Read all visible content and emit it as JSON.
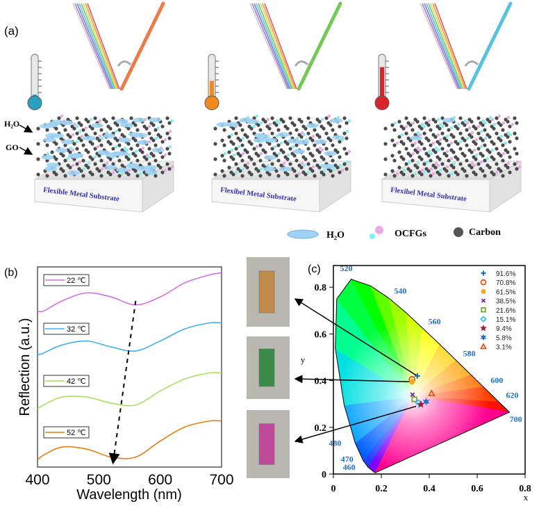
{
  "panel_a": {
    "label": "(a)",
    "h2o_label": "H₂O",
    "go_label": "GO",
    "stacks": [
      {
        "substrate_label": "Flexible Metal Substrate",
        "thermometer_color": "#2a9fc0",
        "thermometer_level": 0.15,
        "reflected_color": "#e8642a",
        "water_level": 1.0
      },
      {
        "substrate_label": "Flexibel Metal Substrate",
        "thermometer_color": "#f08a1e",
        "thermometer_level": 0.45,
        "reflected_color": "#5bbf3a",
        "water_level": 0.45
      },
      {
        "substrate_label": "Flexibel Metal Substrate",
        "thermometer_color": "#d8242a",
        "thermometer_level": 0.75,
        "reflected_color": "#3ab8d8",
        "water_level": 0.12
      }
    ],
    "legend": [
      {
        "label": "H₂O",
        "icon": "water-ellipse-icon"
      },
      {
        "label": "OCFGs",
        "icon": "ocfg-spheres-icon"
      },
      {
        "label": "Carbon",
        "icon": "carbon-sphere-icon"
      }
    ]
  },
  "chart_data": [
    {
      "panel_label": "(b)",
      "type": "line",
      "xlabel": "Wavelength (nm)",
      "ylabel": "Reflection (a.u.)",
      "xlim": [
        400,
        700
      ],
      "ylim": [
        0,
        1
      ],
      "xticks": [
        "400",
        "500",
        "600",
        "700"
      ],
      "grid": false,
      "x": [
        400,
        410,
        440,
        480,
        520,
        560,
        600,
        640,
        680,
        700
      ],
      "series": [
        {
          "name": "22 ℃",
          "color": "#d46ee8",
          "values": [
            0.78,
            0.78,
            0.83,
            0.87,
            0.85,
            0.81,
            0.85,
            0.92,
            0.96,
            0.97
          ]
        },
        {
          "name": "32 ℃",
          "color": "#3fb0f0",
          "values": [
            0.56,
            0.57,
            0.61,
            0.63,
            0.6,
            0.58,
            0.63,
            0.69,
            0.72,
            0.72
          ]
        },
        {
          "name": "42 ℃",
          "color": "#a8e060",
          "values": [
            0.29,
            0.31,
            0.35,
            0.35,
            0.32,
            0.31,
            0.38,
            0.44,
            0.47,
            0.47
          ]
        },
        {
          "name": "52 ℃",
          "color": "#f07a10",
          "values": [
            0.035,
            0.06,
            0.1,
            0.09,
            0.05,
            0.05,
            0.13,
            0.2,
            0.23,
            0.23
          ]
        }
      ],
      "annotation_arrow": {
        "from": [
          560,
          0.83
        ],
        "to": [
          523,
          0.02
        ],
        "style": "dashed"
      }
    },
    {
      "panel_label": "(c)",
      "type": "scatter",
      "xlabel": "x",
      "ylabel": "y",
      "xlim": [
        0,
        0.8
      ],
      "ylim": [
        0,
        0.88
      ],
      "xticks": [
        "0",
        "0.2",
        "0.4",
        "0.6",
        "0.8"
      ],
      "yticks": [
        "0",
        "0.2",
        "0.4",
        "0.6",
        "0.8"
      ],
      "background": "CIE 1931 chromaticity diagram",
      "wavelength_labels": [
        "460",
        "470",
        "480",
        "520",
        "540",
        "560",
        "580",
        "600",
        "620",
        "700"
      ],
      "legend_position": "top-right",
      "points": [
        {
          "name": "91.6%",
          "x": 0.35,
          "y": 0.42,
          "marker": "plus",
          "color": "#1f6fc8"
        },
        {
          "name": "70.8%",
          "x": 0.328,
          "y": 0.405,
          "marker": "circle-open",
          "color": "#e0521e"
        },
        {
          "name": "61.5%",
          "x": 0.328,
          "y": 0.395,
          "marker": "circle",
          "color": "#f0a820"
        },
        {
          "name": "38.5%",
          "x": 0.33,
          "y": 0.34,
          "marker": "x",
          "color": "#7a2a90"
        },
        {
          "name": "21.6%",
          "x": 0.338,
          "y": 0.32,
          "marker": "square-open",
          "color": "#6aa82a"
        },
        {
          "name": "15.1%",
          "x": 0.355,
          "y": 0.305,
          "marker": "diamond-open",
          "color": "#3ac0f0"
        },
        {
          "name": "9.4%",
          "x": 0.365,
          "y": 0.298,
          "marker": "star5",
          "color": "#a01a3a"
        },
        {
          "name": "5.8%",
          "x": 0.387,
          "y": 0.31,
          "marker": "star6",
          "color": "#1f6fc8"
        },
        {
          "name": "3.1%",
          "x": 0.41,
          "y": 0.345,
          "marker": "triangle-open",
          "color": "#e0521e"
        }
      ]
    }
  ],
  "photos": [
    {
      "sample_color": "#c08a4a"
    },
    {
      "sample_color": "#3a8a4a"
    },
    {
      "sample_color": "#c04a9a"
    }
  ]
}
